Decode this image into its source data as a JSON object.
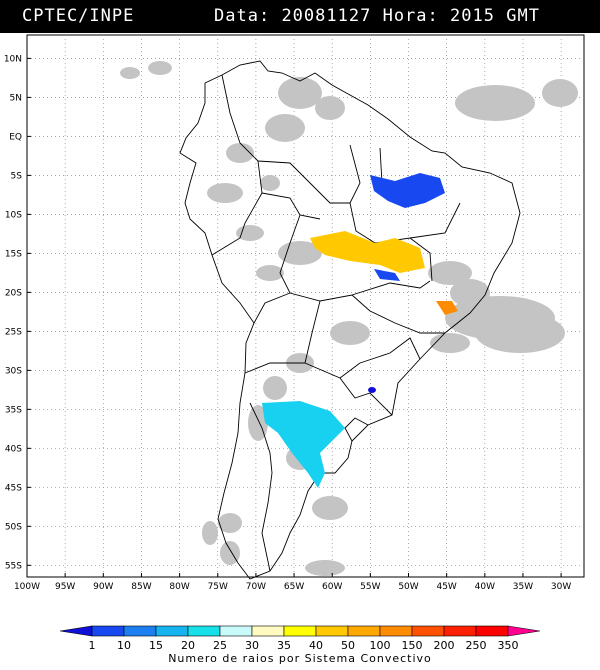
{
  "header": {
    "agency": "CPTEC/INPE",
    "date_label": "Data:",
    "date_value": "20081127",
    "time_label": "Hora:",
    "time_value": "2015",
    "tz": "GMT"
  },
  "map": {
    "lat_labels": [
      "10N",
      "5N",
      "EQ",
      "5S",
      "10S",
      "15S",
      "20S",
      "25S",
      "30S",
      "35S",
      "40S",
      "45S",
      "50S",
      "55S"
    ],
    "lat_values": [
      10,
      5,
      0,
      -5,
      -10,
      -15,
      -20,
      -25,
      -30,
      -35,
      -40,
      -45,
      -50,
      -55
    ],
    "lon_labels": [
      "100W",
      "95W",
      "90W",
      "85W",
      "80W",
      "75W",
      "70W",
      "65W",
      "60W",
      "55W",
      "50W",
      "45W",
      "40W",
      "35W",
      "30W"
    ],
    "lon_values": [
      -100,
      -95,
      -90,
      -85,
      -80,
      -75,
      -70,
      -65,
      -60,
      -55,
      -50,
      -45,
      -40,
      -35,
      -30
    ],
    "lon_range": [
      -100,
      -27
    ],
    "lat_range": [
      -56.5,
      13
    ],
    "grid": "dotted"
  },
  "legend": {
    "ticks": [
      "1",
      "10",
      "15",
      "20",
      "25",
      "30",
      "35",
      "40",
      "50",
      "100",
      "150",
      "200",
      "250",
      "350"
    ],
    "colors": [
      "#1010d8",
      "#1848f0",
      "#1c80f0",
      "#18b4f0",
      "#18e0e8",
      "#c8fafa",
      "#fffbc0",
      "#ffff00",
      "#ffc800",
      "#ffa800",
      "#ff8c00",
      "#ff5000",
      "#ff2000",
      "#ff0000",
      "#ff0090"
    ],
    "title": "Numero de raios por Sistema Convectivo"
  },
  "colors": {
    "cloud": "#c4c4c4",
    "blue_dark": "#1848f0",
    "yellow": "#ffc800",
    "cyan": "#18d0f0",
    "orange": "#ff8c00"
  }
}
